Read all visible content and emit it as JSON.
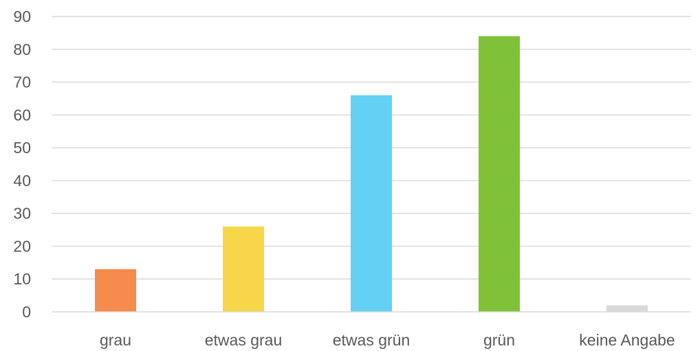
{
  "chart_data": {
    "type": "bar",
    "categories": [
      "grau",
      "etwas grau",
      "etwas grün",
      "grün",
      "keine Angabe"
    ],
    "values": [
      13,
      26,
      66,
      84,
      2
    ],
    "colors": [
      "#F58B4C",
      "#F7D64A",
      "#62D1F3",
      "#80C237",
      "#D9D9D9"
    ],
    "yticks": [
      0,
      10,
      20,
      30,
      40,
      50,
      60,
      70,
      80,
      90
    ],
    "ylim": [
      0,
      90
    ],
    "grid": true,
    "legend": "none",
    "title": "",
    "xlabel": "",
    "ylabel": ""
  }
}
